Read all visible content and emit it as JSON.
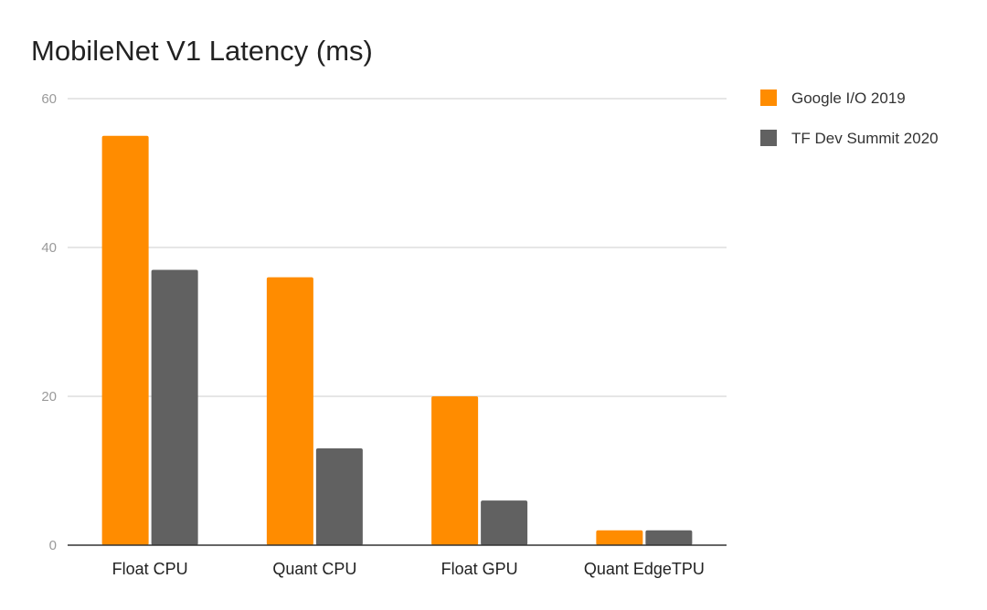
{
  "chart_data": {
    "type": "bar",
    "title": "MobileNet V1 Latency (ms)",
    "xlabel": "",
    "ylabel": "",
    "categories": [
      "Float CPU",
      "Quant CPU",
      "Float GPU",
      "Quant EdgeTPU"
    ],
    "series": [
      {
        "name": "Google I/O 2019",
        "color": "#ff8c00",
        "values": [
          55,
          36,
          20,
          2
        ]
      },
      {
        "name": "TF Dev Summit 2020",
        "color": "#616161",
        "values": [
          37,
          13,
          6,
          2
        ]
      }
    ],
    "ylim": [
      0,
      60
    ],
    "yticks": [
      "0",
      "20",
      "40",
      "60"
    ],
    "grid": true,
    "legend_position": "right"
  }
}
